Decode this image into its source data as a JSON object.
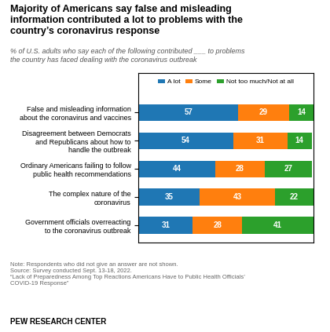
{
  "chart_data": {
    "type": "bar",
    "orientation": "horizontal",
    "stacked": true,
    "title": "Majority of Americans say false and misleading\ninformation contributed a lot to problems with the\ncountry’s coronavirus response",
    "subtitle": "% of U.S. adults who say each of the following contributed ___ to problems\nthe country has faced dealing with the coronavirus outbreak",
    "categories": [
      "False and misleading information\nabout the coronavirus and vaccines",
      "Disagreement between Democrats\nand Republicans about how to\nhandle the outbreak",
      "Ordinary Americans failing to follow\npublic health recommendations",
      "The complex nature of the\ncoronavirus",
      "Government officials overreacting\nto the coronavirus outbreak"
    ],
    "series": [
      {
        "name": "A lot",
        "values": [
          57,
          54,
          44,
          35,
          31
        ]
      },
      {
        "name": "Some",
        "values": [
          29,
          31,
          28,
          43,
          28
        ]
      },
      {
        "name": "Not too much/Not at all",
        "values": [
          14,
          14,
          27,
          22,
          41
        ]
      }
    ],
    "xlim": [
      0,
      100
    ],
    "xticks": [],
    "tick_labels": "y",
    "data_labels": true,
    "legend": "upper center",
    "note": "Note: Respondents who did not give an answer are not shown.\nSource: Survey conducted Sept. 13-18, 2022.\n“Lack of Preparedness Among Top Reactions Americans Have to Public Health Officials’\nCOVID-19 Response”",
    "footer": "PEW RESEARCH CENTER"
  }
}
